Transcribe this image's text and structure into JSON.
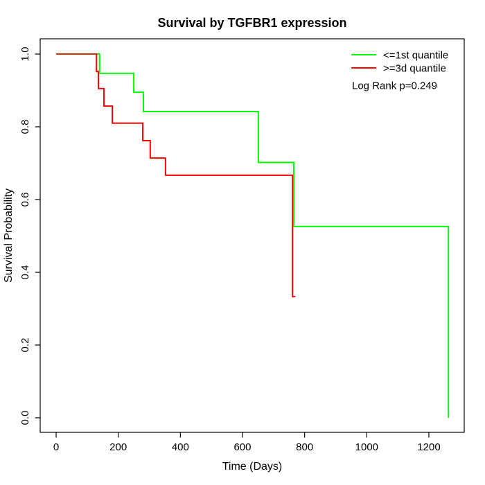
{
  "chart_data": {
    "type": "line",
    "subtype": "kaplan-meier-step",
    "title": "Survival by TGFBR1 expression",
    "xlabel": "Time (Days)",
    "ylabel": "Survival Probability",
    "x_ticks": [
      0,
      200,
      400,
      600,
      800,
      1000,
      1200
    ],
    "y_ticks": [
      0.0,
      0.2,
      0.4,
      0.6,
      0.8,
      1.0
    ],
    "xlim": [
      0,
      1300
    ],
    "ylim": [
      0.0,
      1.0
    ],
    "grid": false,
    "legend_position": "topright",
    "annotation": "Log Rank p=0.249",
    "series": [
      {
        "name": "<=1st quantile",
        "color": "#00ff00",
        "steps": [
          [
            0,
            1.0
          ],
          [
            140,
            0.947
          ],
          [
            250,
            0.895
          ],
          [
            281,
            0.842
          ],
          [
            651,
            0.702
          ],
          [
            765,
            0.526
          ],
          [
            1263,
            0.0
          ]
        ]
      },
      {
        "name": ">=3d quantile",
        "color": "#ff0000",
        "steps": [
          [
            0,
            1.0
          ],
          [
            130,
            0.952
          ],
          [
            136,
            0.905
          ],
          [
            154,
            0.857
          ],
          [
            181,
            0.81
          ],
          [
            279,
            0.762
          ],
          [
            303,
            0.714
          ],
          [
            352,
            0.667
          ],
          [
            761,
            0.333
          ],
          [
            770,
            0.333
          ]
        ]
      }
    ],
    "overlap_color": "#cc3300"
  }
}
